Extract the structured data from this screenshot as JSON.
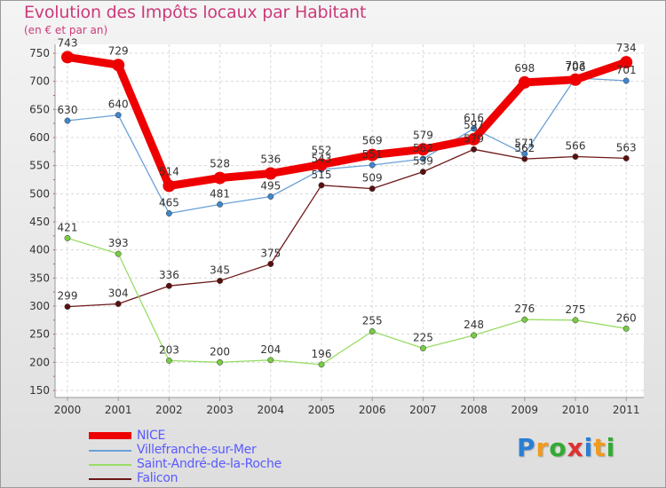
{
  "chart_data": {
    "type": "line",
    "title": "Evolution des Impôts locaux par Habitant",
    "subtitle": "(en € et par an)",
    "x": [
      "2000",
      "2001",
      "2002",
      "2003",
      "2004",
      "2005",
      "2006",
      "2007",
      "2008",
      "2009",
      "2010",
      "2011"
    ],
    "ylim": [
      150,
      750
    ],
    "yticks": [
      "150",
      "200",
      "250",
      "300",
      "350",
      "400",
      "450",
      "500",
      "550",
      "600",
      "650",
      "700",
      "750"
    ],
    "grid": true,
    "legend_position": "bottom-left",
    "series": [
      {
        "name": "Falicon",
        "color": "#6e1818",
        "marker": "#5a1010",
        "width": 1.3,
        "values": [
          299,
          304,
          336,
          345,
          375,
          515,
          509,
          539,
          579,
          562,
          566,
          563
        ],
        "labels": [
          "299",
          "304",
          "336",
          "345",
          "375",
          "515",
          "509",
          "539",
          "579",
          "562",
          "566",
          "563"
        ]
      },
      {
        "name": "Saint-André-de-la-Roche",
        "color": "#99dd66",
        "marker": "#77cc44",
        "width": 1.3,
        "values": [
          421,
          393,
          203,
          200,
          204,
          196,
          255,
          225,
          248,
          276,
          275,
          260
        ],
        "labels": [
          "421",
          "393",
          "203",
          "200",
          "204",
          "196",
          "255",
          "225",
          "248",
          "276",
          "275",
          "260"
        ]
      },
      {
        "name": "Villefranche-sur-Mer",
        "color": "#6aa0d8",
        "marker": "#3f86cc",
        "width": 1.3,
        "values": [
          630,
          640,
          465,
          481,
          495,
          543,
          551,
          562,
          616,
          571,
          706,
          701
        ],
        "labels": [
          "630",
          "640",
          "465",
          "481",
          "495",
          "543",
          "551",
          "562",
          "616",
          "571",
          "706",
          "701"
        ]
      },
      {
        "name": "NICE",
        "color": "#ee0000",
        "marker": "#ee0000",
        "width": 9,
        "values": [
          743,
          729,
          514,
          528,
          536,
          552,
          569,
          579,
          597,
          698,
          703,
          734
        ],
        "labels": [
          "743",
          "729",
          "514",
          "528",
          "536",
          "552",
          "569",
          "579",
          "597",
          "698",
          "703",
          "734"
        ]
      }
    ],
    "legend": [
      "NICE",
      "Villefranche-sur-Mer",
      "Saint-André-de-la-Roche",
      "Falicon"
    ]
  },
  "logo": {
    "letters": [
      "P",
      "r",
      "o",
      "x",
      "i",
      "t",
      "i"
    ],
    "colors": [
      "#2a7fd4",
      "#f29a1a",
      "#33aa33",
      "#e03030",
      "#2a7fd4",
      "#f29a1a",
      "#33aa33"
    ]
  }
}
